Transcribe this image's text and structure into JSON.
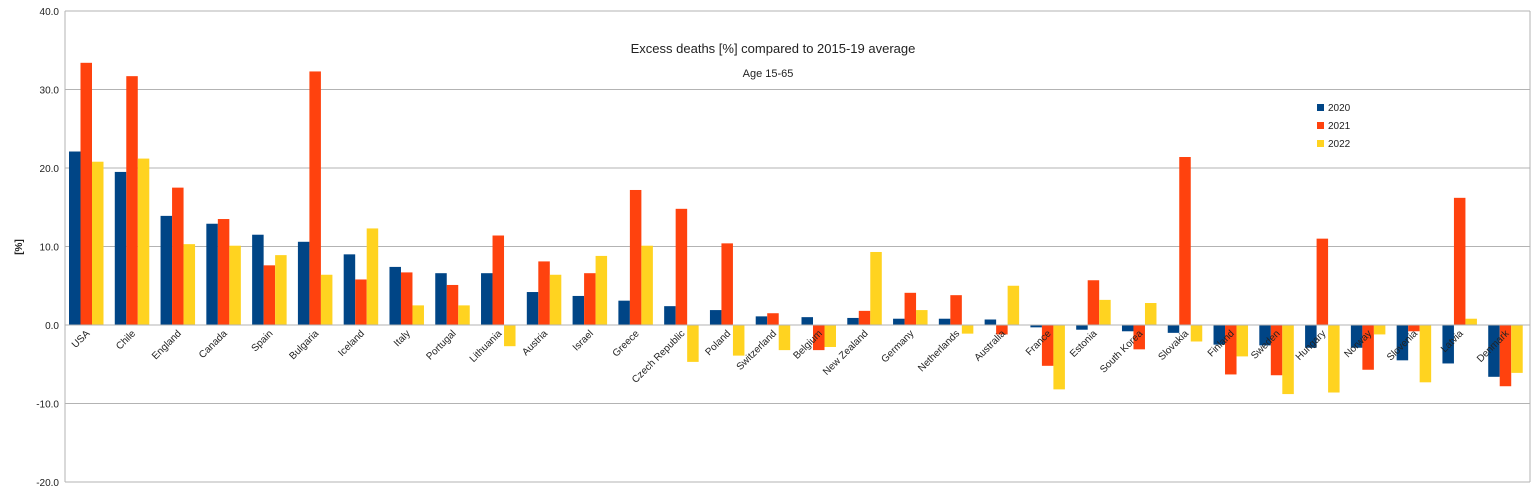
{
  "chart_data": {
    "type": "bar",
    "title": "Excess deaths [%] compared to 2015-19 average",
    "subtitle": "Age 15-65",
    "ylabel": "[%]",
    "ylim": [
      -20,
      40
    ],
    "yticks": [
      "40.0",
      "30.0",
      "20.0",
      "10.0",
      "0.0",
      "-10.0",
      "-20.0"
    ],
    "grid": true,
    "legend_position": "top-right",
    "categories": [
      "USA",
      "Chile",
      "England",
      "Canada",
      "Spain",
      "Bulgaria",
      "Iceland",
      "Italy",
      "Portugal",
      "Lithuania",
      "Austria",
      "Israel",
      "Greece",
      "Czech Republic",
      "Poland",
      "Switzerland",
      "Belgium",
      "New Zealand",
      "Germany",
      "Netherlands",
      "Australia",
      "France",
      "Estonia",
      "South Korea",
      "Slovakia",
      "Finland",
      "Sweden",
      "Hungary",
      "Norway",
      "Slovenia",
      "Latvia",
      "Denmark"
    ],
    "series": [
      {
        "name": "2020",
        "color": "#004586",
        "values": [
          22.1,
          19.5,
          13.9,
          12.9,
          11.5,
          10.6,
          9.0,
          7.4,
          6.6,
          6.6,
          4.2,
          3.7,
          3.1,
          2.4,
          1.9,
          1.1,
          1.0,
          0.9,
          0.8,
          0.8,
          0.7,
          -0.3,
          -0.6,
          -0.8,
          -1.0,
          -2.5,
          -2.6,
          -2.9,
          -2.9,
          -4.5,
          -4.9,
          -6.6
        ]
      },
      {
        "name": "2021",
        "color": "#ff420e",
        "values": [
          33.4,
          31.7,
          17.5,
          13.5,
          7.6,
          32.3,
          5.8,
          6.7,
          5.1,
          11.4,
          8.1,
          6.6,
          17.2,
          14.8,
          10.4,
          1.5,
          -3.2,
          1.8,
          4.1,
          3.8,
          -1.2,
          -5.2,
          5.7,
          -3.1,
          21.4,
          -6.3,
          -6.4,
          11.0,
          -5.7,
          -0.8,
          16.2,
          -7.8
        ]
      },
      {
        "name": "2022",
        "color": "#ffd320",
        "values": [
          20.8,
          21.2,
          10.3,
          10.1,
          8.9,
          6.4,
          12.3,
          2.5,
          2.5,
          -2.7,
          6.4,
          8.8,
          10.1,
          -4.7,
          -3.9,
          -3.2,
          -2.8,
          9.3,
          1.9,
          -1.1,
          5.0,
          -8.2,
          3.2,
          2.8,
          -2.1,
          -4.0,
          -8.8,
          -8.6,
          -1.2,
          -7.3,
          0.8,
          -6.1
        ]
      }
    ]
  }
}
